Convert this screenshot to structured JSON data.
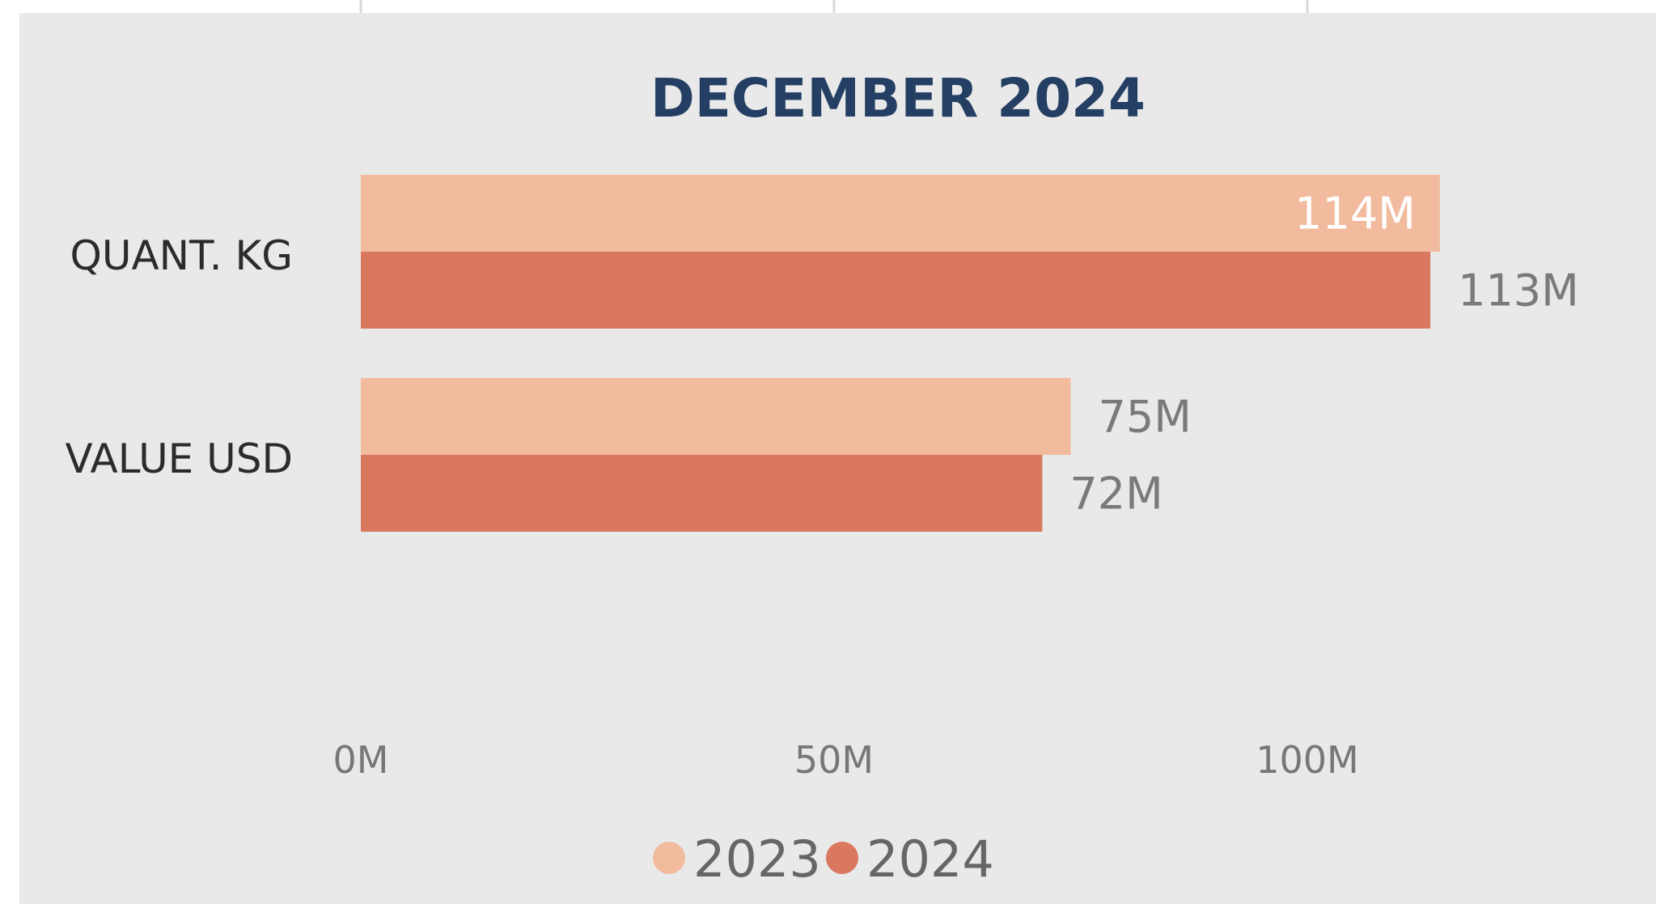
{
  "chart_data": {
    "type": "bar",
    "orientation": "horizontal",
    "title": "DECEMBER 2024",
    "categories": [
      "QUANT. KG",
      "VALUE USD"
    ],
    "series": [
      {
        "name": "2023",
        "values": [
          114,
          75
        ],
        "labels": [
          "114M",
          "75M"
        ],
        "color": "#f2bb9e"
      },
      {
        "name": "2024",
        "values": [
          113,
          72
        ],
        "labels": [
          "113M",
          "72M"
        ],
        "color": "#d9775f"
      }
    ],
    "xlim": [
      0,
      125
    ],
    "xticks": [
      0,
      50,
      100
    ],
    "xtick_labels": [
      "0M",
      "50M",
      "100M"
    ],
    "unit": "M",
    "legend": "bottom-center",
    "grid": false,
    "colors": {
      "background": "#e9e9e9",
      "title": "#243f63",
      "grid_top": "#d8d8d8"
    }
  }
}
